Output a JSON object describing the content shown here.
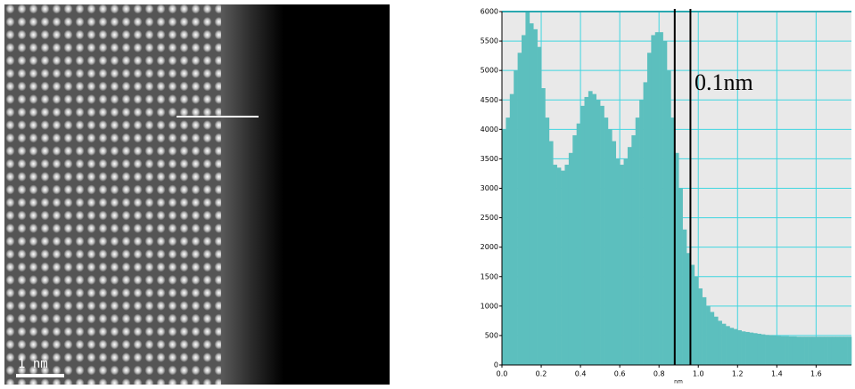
{
  "image": {
    "scale_bar_label": "1 nm"
  },
  "chart_data": {
    "type": "histogram",
    "x_label": "nm",
    "color": "#5cbfbe",
    "grid": true,
    "grid_color": "#3fd6e0",
    "bins": [
      0,
      0.02,
      0.04,
      0.06,
      0.08,
      0.1,
      0.12,
      0.14,
      0.16,
      0.18,
      0.2,
      0.22,
      0.24,
      0.26,
      0.28,
      0.3,
      0.32,
      0.34,
      0.36,
      0.38,
      0.4,
      0.42,
      0.44,
      0.46,
      0.48,
      0.5,
      0.52,
      0.54,
      0.56,
      0.58,
      0.6,
      0.62,
      0.64,
      0.66,
      0.68,
      0.7,
      0.72,
      0.74,
      0.76,
      0.78,
      0.8,
      0.82,
      0.84,
      0.86,
      0.88,
      0.9,
      0.92,
      0.94,
      0.96,
      0.98,
      1,
      1.02,
      1.04,
      1.06,
      1.08,
      1.1,
      1.12,
      1.14,
      1.16,
      1.18,
      1.2,
      1.22,
      1.24,
      1.26,
      1.28,
      1.3,
      1.32,
      1.34,
      1.36,
      1.38,
      1.4,
      1.42,
      1.44,
      1.46,
      1.48,
      1.5,
      1.52,
      1.54,
      1.56,
      1.58,
      1.6,
      1.62,
      1.64,
      1.66,
      1.68,
      1.7,
      1.72,
      1.74,
      1.76,
      1.78
    ],
    "values": [
      4000,
      4200,
      4600,
      5000,
      5300,
      5600,
      6000,
      5800,
      5700,
      5400,
      4700,
      4200,
      3800,
      3400,
      3350,
      3300,
      3400,
      3600,
      3900,
      4100,
      4400,
      4550,
      4650,
      4600,
      4500,
      4400,
      4200,
      4000,
      3800,
      3500,
      3400,
      3500,
      3700,
      3900,
      4200,
      4500,
      4800,
      5300,
      5600,
      5650,
      5650,
      5500,
      5000,
      4200,
      3600,
      3000,
      2300,
      1900,
      1700,
      1500,
      1300,
      1150,
      1000,
      900,
      820,
      750,
      700,
      660,
      630,
      610,
      590,
      570,
      560,
      550,
      540,
      530,
      520,
      510,
      505,
      500,
      495,
      490,
      490,
      485,
      485,
      480,
      480,
      480,
      480,
      480,
      480,
      480,
      480,
      480,
      480,
      480,
      480,
      480,
      480
    ],
    "xlim": [
      0,
      1.78
    ],
    "ylim": [
      0,
      6000
    ],
    "xticks": [
      {
        "value": 0,
        "label": "0.0"
      },
      0.2,
      0.4,
      0.6,
      0.8,
      {
        "value": 1,
        "label": "1.0"
      },
      1.2,
      1.4,
      1.6
    ],
    "yticks": [
      0,
      500,
      1000,
      1500,
      2000,
      2500,
      3000,
      3500,
      4000,
      4500,
      5000,
      5500,
      6000
    ],
    "vlines": [
      0.88,
      0.96
    ],
    "annotation": "0.1nm"
  }
}
